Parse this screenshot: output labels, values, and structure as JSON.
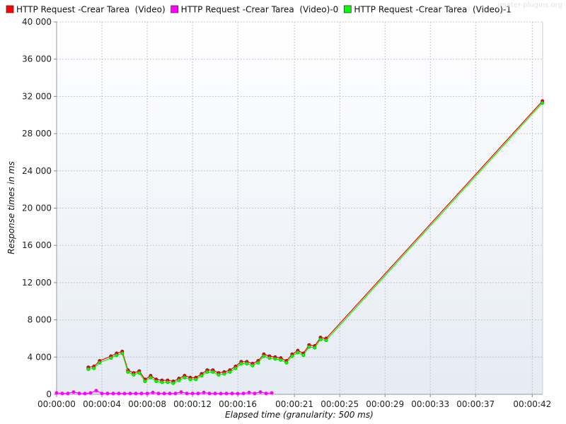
{
  "chart_data": {
    "type": "line",
    "title": "",
    "xlabel": "Elapsed time (granularity: 500 ms)",
    "ylabel": "Response times in ms",
    "x_unit": "seconds",
    "xlim": [
      0,
      42.92
    ],
    "ylim": [
      0,
      40000
    ],
    "x_ticks": [
      {
        "value": 0,
        "label": "00:00:00"
      },
      {
        "value": 4,
        "label": "00:00:04"
      },
      {
        "value": 8,
        "label": "00:00:08"
      },
      {
        "value": 12,
        "label": "00:00:12"
      },
      {
        "value": 16,
        "label": "00:00:16"
      },
      {
        "value": 21,
        "label": "00:00:21"
      },
      {
        "value": 25,
        "label": "00:00:25"
      },
      {
        "value": 29,
        "label": "00:00:29"
      },
      {
        "value": 33,
        "label": "00:00:33"
      },
      {
        "value": 37,
        "label": "00:00:37"
      },
      {
        "value": 42,
        "label": "00:00:42"
      }
    ],
    "y_ticks": [
      {
        "value": 0,
        "label": "0"
      },
      {
        "value": 4000,
        "label": "4 000"
      },
      {
        "value": 8000,
        "label": "8 000"
      },
      {
        "value": 12000,
        "label": "12 000"
      },
      {
        "value": 16000,
        "label": "16 000"
      },
      {
        "value": 20000,
        "label": "20 000"
      },
      {
        "value": 24000,
        "label": "24 000"
      },
      {
        "value": 28000,
        "label": "28 000"
      },
      {
        "value": 32000,
        "label": "32 000"
      },
      {
        "value": 36000,
        "label": "36 000"
      },
      {
        "value": 40000,
        "label": "40 000"
      }
    ],
    "grid": true,
    "legend_position": "top",
    "series": [
      {
        "name": "HTTP Request -Crear Tarea  (Video)",
        "color": "#ff0000",
        "x": [
          2.8,
          3.3,
          3.8,
          4.8,
          5.3,
          5.8,
          6.3,
          6.8,
          7.3,
          7.8,
          8.3,
          8.8,
          9.3,
          9.8,
          10.3,
          10.8,
          11.3,
          11.8,
          12.3,
          12.8,
          13.3,
          13.8,
          14.3,
          14.8,
          15.3,
          15.8,
          16.3,
          16.8,
          17.3,
          17.8,
          18.3,
          18.8,
          19.3,
          19.8,
          20.3,
          20.8,
          21.3,
          21.8,
          22.3,
          22.8,
          23.3,
          23.8,
          42.9
        ],
        "y": [
          2900,
          3000,
          3600,
          4100,
          4400,
          4600,
          2600,
          2300,
          2500,
          1600,
          2000,
          1600,
          1500,
          1500,
          1400,
          1700,
          2000,
          1800,
          1800,
          2200,
          2600,
          2600,
          2300,
          2400,
          2600,
          3000,
          3500,
          3500,
          3300,
          3600,
          4300,
          4100,
          4000,
          3900,
          3600,
          4300,
          4700,
          4400,
          5300,
          5200,
          6100,
          6000,
          31500
        ]
      },
      {
        "name": "HTTP Request -Crear Tarea  (Video)-0",
        "color": "#ff00ff",
        "x": [
          0,
          0.5,
          1.0,
          1.5,
          2.0,
          2.5,
          3.0,
          3.5,
          4.0,
          4.5,
          5.0,
          5.5,
          6.0,
          6.5,
          7.0,
          7.5,
          8.0,
          8.5,
          9.0,
          9.5,
          10.0,
          10.5,
          11.0,
          11.5,
          12.0,
          12.5,
          13.0,
          13.5,
          14.0,
          14.5,
          15.0,
          15.5,
          16.0,
          16.5,
          17.0,
          17.5,
          18.0,
          18.5,
          19.0
        ],
        "y": [
          150,
          100,
          100,
          250,
          100,
          80,
          150,
          400,
          100,
          100,
          100,
          100,
          80,
          100,
          100,
          100,
          100,
          200,
          100,
          100,
          100,
          100,
          250,
          100,
          100,
          100,
          200,
          100,
          100,
          80,
          100,
          100,
          80,
          100,
          200,
          100,
          250,
          100,
          150
        ]
      },
      {
        "name": "HTTP Request -Crear Tarea  (Video)-1",
        "color": "#00ff00",
        "x": [
          2.8,
          3.3,
          3.8,
          4.8,
          5.3,
          5.8,
          6.3,
          6.8,
          7.3,
          7.8,
          8.3,
          8.8,
          9.3,
          9.8,
          10.3,
          10.8,
          11.3,
          11.8,
          12.3,
          12.8,
          13.3,
          13.8,
          14.3,
          14.8,
          15.3,
          15.8,
          16.3,
          16.8,
          17.3,
          17.8,
          18.3,
          18.8,
          19.3,
          19.8,
          20.3,
          20.8,
          21.3,
          21.8,
          22.3,
          22.8,
          23.3,
          23.8,
          42.9
        ],
        "y": [
          2700,
          2800,
          3400,
          3900,
          4200,
          4400,
          2400,
          2100,
          2300,
          1400,
          1800,
          1400,
          1300,
          1300,
          1200,
          1500,
          1800,
          1600,
          1600,
          2000,
          2400,
          2400,
          2100,
          2200,
          2400,
          2800,
          3300,
          3300,
          3100,
          3400,
          4100,
          3900,
          3800,
          3700,
          3400,
          4100,
          4500,
          4200,
          5100,
          5000,
          5900,
          5800,
          31300
        ]
      }
    ]
  },
  "watermark": "jmeter-plugins.org"
}
